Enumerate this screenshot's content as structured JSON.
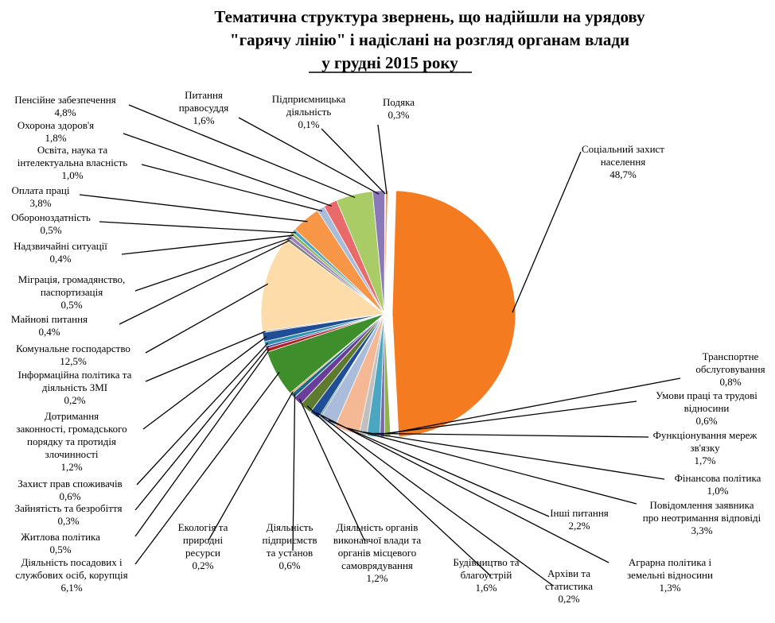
{
  "chart_data": {
    "type": "pie",
    "title_lines": [
      "Тематична структура звернень, що надійшли на урядову",
      "\"гарячу лінію\" і надіслані на розгляд органам влади",
      "у грудні 2015 року"
    ],
    "slices": [
      {
        "name": "Соціальний захист населення",
        "value": 48.7,
        "label": "48,7%",
        "color": "#F47B20"
      },
      {
        "name": "Транспортне обслуговування",
        "value": 0.8,
        "label": "0,8%",
        "color": "#8DB24F"
      },
      {
        "name": "Умови праці та трудові відносини",
        "value": 0.6,
        "label": "0,6%",
        "color": "#7B67A8"
      },
      {
        "name": "Функціонування мереж зв'язку",
        "value": 1.7,
        "label": "1,7%",
        "color": "#4BA6C2"
      },
      {
        "name": "Фінансова політика",
        "value": 1.0,
        "label": "1,0%",
        "color": "#C0C0C0"
      },
      {
        "name": "Повідомлення заявника про неотримання відповіді",
        "value": 3.3,
        "label": "3,3%",
        "color": "#F5B895"
      },
      {
        "name": "Інші питання",
        "value": 2.2,
        "label": "2,2%",
        "color": "#A9BCDA"
      },
      {
        "name": "Архіви та статистика",
        "value": 0.2,
        "label": "0,2%",
        "color": "#3C7A90"
      },
      {
        "name": "Аграрна політика і земельні відносини",
        "value": 1.3,
        "label": "1,3%",
        "color": "#1F4E96"
      },
      {
        "name": "Будівництво та благоустрій",
        "value": 1.6,
        "label": "1,6%",
        "color": "#5E7A2E"
      },
      {
        "name": "Діяльність органів виконавчої влади та органів місцевого самоврядування",
        "value": 1.2,
        "label": "1,2%",
        "color": "#6A3D9A"
      },
      {
        "name": "Діяльність підприємств та установ",
        "value": 0.6,
        "label": "0,6%",
        "color": "#1E6A86"
      },
      {
        "name": "Екологія та природні ресурси",
        "value": 0.2,
        "label": "0,2%",
        "color": "#E07020"
      },
      {
        "name": "Діяльність посадових і службових осіб, корупція",
        "value": 6.1,
        "label": "6,1%",
        "color": "#3E8E2B"
      },
      {
        "name": "Житлова політика",
        "value": 0.5,
        "label": "0,5%",
        "color": "#B02020"
      },
      {
        "name": "Зайнятість та безробіття",
        "value": 0.3,
        "label": "0,3%",
        "color": "#5B3A8A"
      },
      {
        "name": "Захист прав споживачів",
        "value": 0.6,
        "label": "0,6%",
        "color": "#2F8FB0"
      },
      {
        "name": "Дотримання законності, громадського порядку та протидія злочинності",
        "value": 1.2,
        "label": "1,2%",
        "color": "#1F4E96"
      },
      {
        "name": "Інформаційна політика та діяльність ЗМІ",
        "value": 0.2,
        "label": "0,2%",
        "color": "#9A9A9A"
      },
      {
        "name": "Комунальне господарство",
        "value": 12.5,
        "label": "12,5%",
        "color": "#FDDCAA"
      },
      {
        "name": "Майнові питання",
        "value": 0.4,
        "label": "0,4%",
        "color": "#7C7C7C"
      },
      {
        "name": "Міграція, громадянство, паспортизація",
        "value": 0.5,
        "label": "0,5%",
        "color": "#9B7FC0"
      },
      {
        "name": "Надзвичайні ситуації",
        "value": 0.4,
        "label": "0,4%",
        "color": "#8DB24F"
      },
      {
        "name": "Обороноздатність",
        "value": 0.5,
        "label": "0,5%",
        "color": "#4BA6C2"
      },
      {
        "name": "Оплата праці",
        "value": 3.8,
        "label": "3,8%",
        "color": "#F79646"
      },
      {
        "name": "Освіта, наука та інтелектуальна власність",
        "value": 1.0,
        "label": "1,0%",
        "color": "#A9BCDA"
      },
      {
        "name": "Охорона здоров'я",
        "value": 1.8,
        "label": "1,8%",
        "color": "#E86A6A"
      },
      {
        "name": "Пенсійне забезпечення",
        "value": 4.8,
        "label": "4,8%",
        "color": "#A9CC66"
      },
      {
        "name": "Питання правосуддя",
        "value": 1.6,
        "label": "1,6%",
        "color": "#8A78B8"
      },
      {
        "name": "Підприємницька діяльність",
        "value": 0.1,
        "label": "0,1%",
        "color": "#4BA6C2"
      },
      {
        "name": "Подяка",
        "value": 0.3,
        "label": "0,3%",
        "color": "#F79646"
      }
    ]
  },
  "labels": [
    {
      "lines": [
        "Соціальний захист",
        "населення",
        "48,7%"
      ]
    },
    {
      "lines": [
        "Транспортне",
        "обслуговування",
        "0,8%"
      ]
    },
    {
      "lines": [
        "Умови праці та трудові",
        "відносини",
        "0,6%"
      ]
    },
    {
      "lines": [
        "Функціонування мереж",
        "зв'язку",
        "1,7%"
      ]
    },
    {
      "lines": [
        "Фінансова політика",
        "1,0%"
      ]
    },
    {
      "lines": [
        "Повідомлення заявника",
        "про неотримання відповіді",
        "3,3%"
      ]
    },
    {
      "lines": [
        "Інші питання",
        "2,2%"
      ]
    },
    {
      "lines": [
        "Архіви та",
        "статистика",
        "0,2%"
      ]
    },
    {
      "lines": [
        "Аграрна політика і",
        "земельні відносини",
        "1,3%"
      ]
    },
    {
      "lines": [
        "Будівництво та",
        "благоустрій",
        "1,6%"
      ]
    },
    {
      "lines": [
        "Діяльність органів",
        "виконавчої влади та",
        "органів місцевого",
        "самоврядування",
        "1,2%"
      ]
    },
    {
      "lines": [
        "Діяльність",
        "підприємств",
        "та установ",
        "0,6%"
      ]
    },
    {
      "lines": [
        "Екологія та",
        "природні",
        "ресурси",
        "0,2%"
      ]
    },
    {
      "lines": [
        "Діяльність посадових і",
        "службових осіб, корупція",
        "6,1%"
      ]
    },
    {
      "lines": [
        "Житлова політика",
        "0,5%"
      ]
    },
    {
      "lines": [
        "Зайнятість та безробіття",
        "0,3%"
      ]
    },
    {
      "lines": [
        "Захист прав споживачів",
        "0,6%"
      ]
    },
    {
      "lines": [
        "Дотримання",
        "законності, громадського",
        "порядку та протидія",
        "злочинності",
        "1,2%"
      ]
    },
    {
      "lines": [
        "Інформаційна політика та",
        "діяльність ЗМІ",
        "0,2%"
      ]
    },
    {
      "lines": [
        "Комунальне господарство",
        "12,5%"
      ]
    },
    {
      "lines": [
        "Майнові питання",
        "0,4%"
      ]
    },
    {
      "lines": [
        "Міграція, громадянство,",
        "паспортизація",
        "0,5%"
      ]
    },
    {
      "lines": [
        "Надзвичайні ситуації",
        "0,4%"
      ]
    },
    {
      "lines": [
        "Обороноздатність",
        "0,5%"
      ]
    },
    {
      "lines": [
        "Оплата праці",
        "3,8%"
      ]
    },
    {
      "lines": [
        "Освіта, наука та",
        "інтелектуальна власність",
        "1,0%"
      ]
    },
    {
      "lines": [
        "Охорона здоров'я",
        "1,8%"
      ]
    },
    {
      "lines": [
        "Пенсійне забезпечення",
        "4,8%"
      ]
    },
    {
      "lines": [
        "Питання",
        "правосуддя",
        "1,6%"
      ]
    },
    {
      "lines": [
        "Підприємницька",
        "діяльність",
        "0,1%"
      ]
    },
    {
      "lines": [
        "Подяка",
        "0,3%"
      ]
    }
  ]
}
